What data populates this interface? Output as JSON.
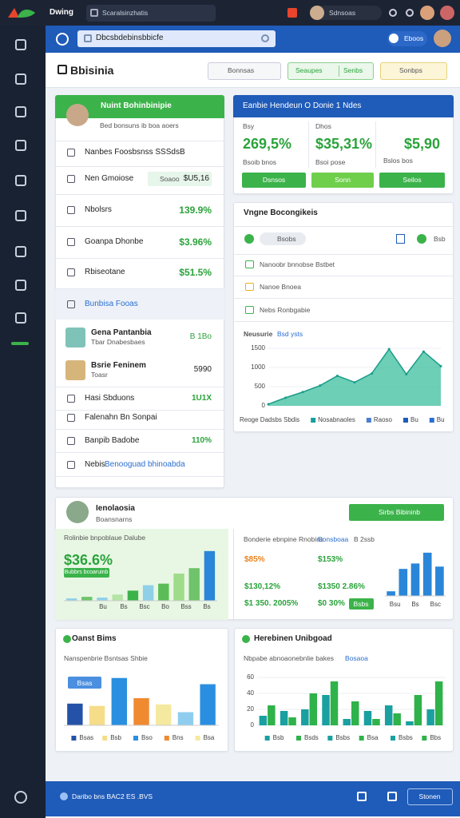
{
  "topbar": {
    "app": "Dwing",
    "search": "Scaralsinzhatis",
    "user": "Sdnsoas"
  },
  "header": {
    "search": "Dbcsbdebinsbbicfe",
    "badge": "Eboos"
  },
  "toolbar": {
    "title": "Bbisinia",
    "filter": "Bonnsas",
    "green_button": "Seaupes",
    "green_button_option": "Senbs",
    "yellow_button": "Sonbps"
  },
  "left_panel": {
    "title": "Nuint Bohinbinipie",
    "subtitle": "Bed bonsuns ib boa aoers",
    "rows": [
      {
        "label": "Nanbes Foosbsnss SSSdsB"
      },
      {
        "label": "Nen Gmoiose",
        "tag": "Soaoo",
        "value": "$U5,16"
      },
      {
        "label": "Nbolsrs",
        "value": "139.9%"
      },
      {
        "label": "Goanpa Dhonbe",
        "value": "$3.96%"
      },
      {
        "label": "Rbiseotane",
        "value": "$51.5%"
      },
      {
        "label": "Bunbisa Fooas"
      }
    ],
    "people": [
      {
        "name": "Gena Pantanbia",
        "sub": "Tbar Dnabesbaes",
        "value": "B 1Bo"
      },
      {
        "name": "Bsrie Feninem",
        "sub": "Toasr",
        "value": "5990"
      }
    ],
    "items": [
      {
        "label": "Hasi Sbduons",
        "value": "1U1X"
      },
      {
        "label": "Falenahn Bn Sonpai"
      },
      {
        "label": "Banpib Badobe",
        "value": "110%"
      },
      {
        "label": "Nebis",
        "link": "Benooguad bhinoabda"
      }
    ]
  },
  "summary_card": {
    "title": "Eanbie Hendeun O Donie 1 Ndes",
    "stats": [
      {
        "label": "Bsy",
        "value": "269,5%",
        "note": "Bsoib bnos"
      },
      {
        "label": "Dhos",
        "value": "$35,31%",
        "note": "Bsoi pose"
      },
      {
        "value": "$5,90",
        "note": "Bslos bos"
      }
    ],
    "buttons": [
      "Dsnsos",
      "Sonn",
      "Seilos"
    ]
  },
  "activity_card": {
    "title": "Vngne Bocongikeis",
    "filter": "Bsobs",
    "action": "Bsb",
    "rows": [
      "Nanoobr bnnobse Bstbet",
      "Nanoe Bnoea",
      "Nebs Ronbgabie"
    ],
    "chart": {
      "type": "area",
      "title": "Neusurie",
      "subtitle": "Bsd ysts",
      "values": [
        42,
        211,
        359,
        528,
        782,
        613,
        845,
        1479,
        824,
        1415,
        1035
      ],
      "ylim": [
        0,
        1500
      ],
      "yticks": [
        0,
        500,
        1000,
        1500
      ],
      "color": "#3cbf9c",
      "legend": [
        "Reoge Dadsbs Sbdis",
        "Nosabnaoles",
        "Raoso",
        "Bu",
        "Bu"
      ],
      "legend_colors": [
        "#3cbf9c",
        "#1a9c9c",
        "#4a7fd0",
        "#1e5bb8",
        "#2a6fd0"
      ]
    }
  },
  "profile_card": {
    "name": "Ienolaosia",
    "subtitle": "Boansnarns",
    "button": "Sirbs Bibininb",
    "left": {
      "title": "Rolinbie bnpoblaue Dalube",
      "value": "$36.6%",
      "badge": "Bubbrs bcoaruinb",
      "chart": {
        "type": "bar",
        "values": [
          3,
          5,
          4,
          8,
          13,
          20,
          22,
          35,
          42,
          64
        ],
        "ylim": [
          0,
          70
        ],
        "colors": [
          "#8fd0e8",
          "#6fc36a",
          "#8fd0e8",
          "#b6e3a6",
          "#3bb34a",
          "#8fd0e8",
          "#5bbd57",
          "#9fdc8a",
          "#6fc36a",
          "#2a86d8"
        ]
      },
      "x_labels": [
        "Bu",
        "Bs",
        "Bsc",
        "Bo",
        "Bss",
        "Bs"
      ]
    },
    "right": {
      "title": "Bonderie ebnpine Rnobins",
      "link": "Bonsboaa",
      "tag": "B 2ssb",
      "figures": [
        "$85%",
        "$153%",
        "$130,12%",
        "$1350 2.86%",
        "$1 350. 2005%",
        "$0 30%"
      ],
      "chip": "Bsbs",
      "chart": {
        "type": "bar",
        "values": [
          6,
          35,
          42,
          56,
          38
        ],
        "ylim": [
          0,
          60
        ],
        "colors": [
          "#2a86d8",
          "#2a86d8",
          "#2a86d8",
          "#2a86d8",
          "#2a86d8"
        ]
      },
      "x_labels": [
        "Bsu",
        "Bs",
        "Bsc"
      ]
    }
  },
  "bottom_left": {
    "title": "Oanst Bims",
    "subtitle": "Nanspenbrie Bsntsas Shbie",
    "badge": "Bsas",
    "chart": {
      "type": "bar",
      "values": [
        28,
        25,
        61,
        35,
        27,
        17,
        53
      ],
      "ylim": [
        0,
        70
      ],
      "colors": [
        "#2452a8",
        "#f5dd8a",
        "#2a8fe0",
        "#f08a30",
        "#f5e9a0",
        "#8fcdef",
        "#2a8fe0"
      ]
    },
    "legend": [
      "Bsas",
      "Bsb",
      "Bso",
      "Bns",
      "Bsa"
    ]
  },
  "bottom_right": {
    "title": "Herebinen Unibgoad",
    "subtitle": "Nbpabe abnoaonebnlie bakes",
    "link": "Bosaoa",
    "chart": {
      "type": "grouped-bar",
      "ylim": [
        0,
        60
      ],
      "yticks": [
        0,
        20,
        40,
        60
      ],
      "series": [
        {
          "color": "#1aa0a0",
          "values": [
            12,
            18,
            20,
            38,
            8,
            18,
            25,
            5,
            20
          ]
        },
        {
          "color": "#2fb24a",
          "values": [
            25,
            10,
            40,
            55,
            30,
            8,
            15,
            38,
            55
          ]
        }
      ]
    },
    "legend": [
      "Bsb",
      "Bsds",
      "Bsbs",
      "Bsa",
      "Bsbs",
      "Bbs"
    ]
  },
  "footer": {
    "text": "Daribo bns BAC2 ES .BVS",
    "button": "Stonen"
  }
}
